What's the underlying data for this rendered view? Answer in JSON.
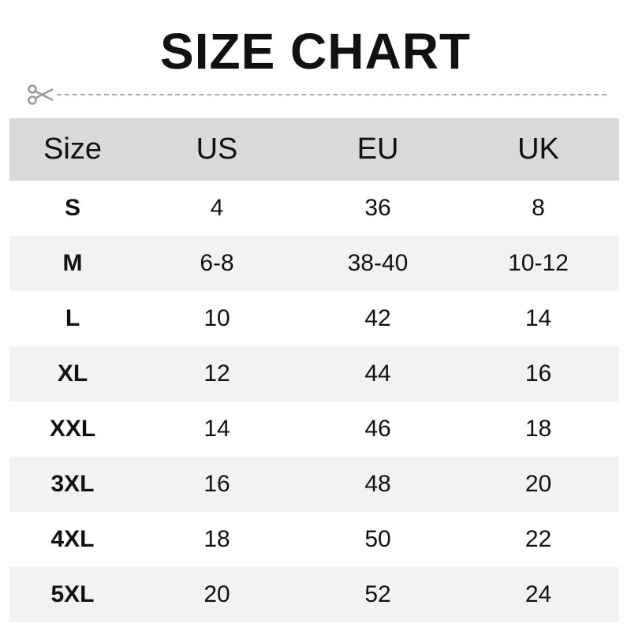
{
  "title": "SIZE CHART",
  "icons": {
    "cut_line": "scissors-icon"
  },
  "colors": {
    "header_bg": "#d9d9d9",
    "alt_row_bg": "#f2f2f2",
    "text": "#111111"
  },
  "table": {
    "headers": [
      "Size",
      "US",
      "EU",
      "UK"
    ],
    "rows": [
      [
        "S",
        "4",
        "36",
        "8"
      ],
      [
        "M",
        "6-8",
        "38-40",
        "10-12"
      ],
      [
        "L",
        "10",
        "42",
        "14"
      ],
      [
        "XL",
        "12",
        "44",
        "16"
      ],
      [
        "XXL",
        "14",
        "46",
        "18"
      ],
      [
        "3XL",
        "16",
        "48",
        "20"
      ],
      [
        "4XL",
        "18",
        "50",
        "22"
      ],
      [
        "5XL",
        "20",
        "52",
        "24"
      ]
    ]
  }
}
